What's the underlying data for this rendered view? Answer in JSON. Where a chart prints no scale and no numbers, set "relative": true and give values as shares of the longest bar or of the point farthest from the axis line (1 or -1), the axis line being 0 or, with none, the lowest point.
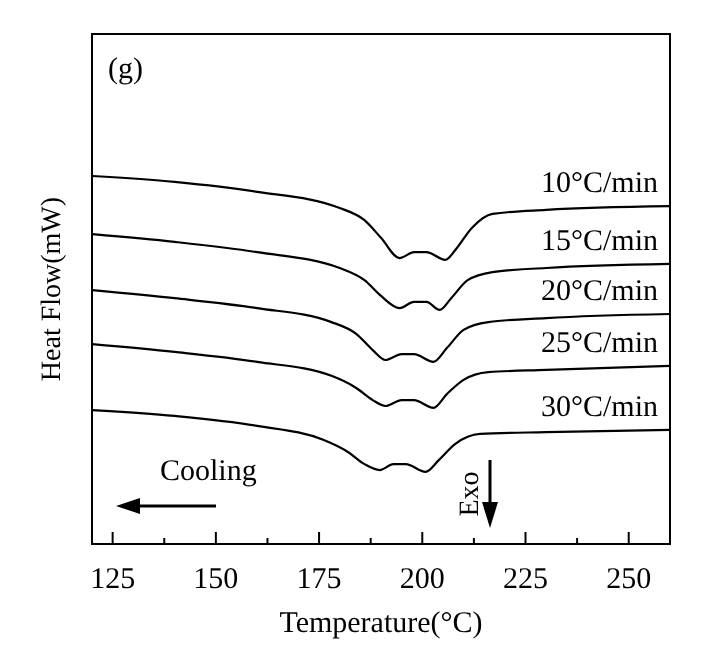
{
  "chart_data": {
    "type": "line",
    "relative": true,
    "xlabel": "Temperature(°C)",
    "ylabel": "Heat Flow(mW)",
    "xlim": [
      120,
      260
    ],
    "xticks": [
      125,
      {
        "value": 137.5,
        "label": null
      },
      150,
      {
        "value": 162.5,
        "label": null
      },
      175,
      {
        "value": 187.5,
        "label": null
      },
      200,
      {
        "value": 212.5,
        "label": null
      },
      225,
      {
        "value": 237.5,
        "label": null
      },
      250
    ],
    "tick_labels": "x",
    "grid": false,
    "legend": false,
    "marker": "none",
    "line_style": "solid",
    "annotations": [
      "(g)",
      "Cooling",
      "Exo"
    ],
    "series": [
      {
        "name": "10°C/min",
        "color": "#000000",
        "x": [
          120,
          140,
          160,
          180,
          186,
          190,
          194.5,
          198,
          201,
          205.6,
          208,
          212,
          217,
          230,
          260
        ],
        "values": [
          1.0,
          0.984,
          0.957,
          0.913,
          0.88,
          0.832,
          0.777,
          0.793,
          0.793,
          0.772,
          0.799,
          0.859,
          0.897,
          0.908,
          0.918
        ]
      },
      {
        "name": "15°C/min",
        "color": "#000000",
        "x": [
          120,
          140,
          160,
          180,
          186,
          190,
          194.5,
          198,
          201,
          204.2,
          207,
          211,
          217,
          230,
          260
        ],
        "values": [
          0.842,
          0.821,
          0.793,
          0.75,
          0.717,
          0.674,
          0.641,
          0.658,
          0.658,
          0.636,
          0.668,
          0.717,
          0.739,
          0.75,
          0.761
        ]
      },
      {
        "name": "20°C/min",
        "color": "#000000",
        "x": [
          120,
          140,
          160,
          178,
          184,
          188,
          191.1,
          195,
          198,
          202.7,
          206,
          210,
          216,
          230,
          260
        ],
        "values": [
          0.69,
          0.668,
          0.641,
          0.603,
          0.571,
          0.527,
          0.5,
          0.516,
          0.516,
          0.495,
          0.533,
          0.582,
          0.603,
          0.614,
          0.625
        ]
      },
      {
        "name": "25°C/min",
        "color": "#000000",
        "x": [
          120,
          140,
          160,
          178,
          184,
          188,
          191.1,
          195,
          198,
          202.7,
          206,
          210,
          216,
          230,
          260
        ],
        "values": [
          0.543,
          0.522,
          0.495,
          0.457,
          0.424,
          0.391,
          0.375,
          0.391,
          0.391,
          0.37,
          0.408,
          0.446,
          0.467,
          0.473,
          0.484
        ]
      },
      {
        "name": "30°C/min",
        "color": "#000000",
        "x": [
          120,
          140,
          160,
          176,
          182,
          186,
          189.7,
          193,
          196,
          200.8,
          204,
          208,
          214,
          230,
          260
        ],
        "values": [
          0.364,
          0.348,
          0.321,
          0.283,
          0.25,
          0.217,
          0.201,
          0.217,
          0.217,
          0.196,
          0.228,
          0.272,
          0.299,
          0.304,
          0.31
        ]
      }
    ]
  }
}
